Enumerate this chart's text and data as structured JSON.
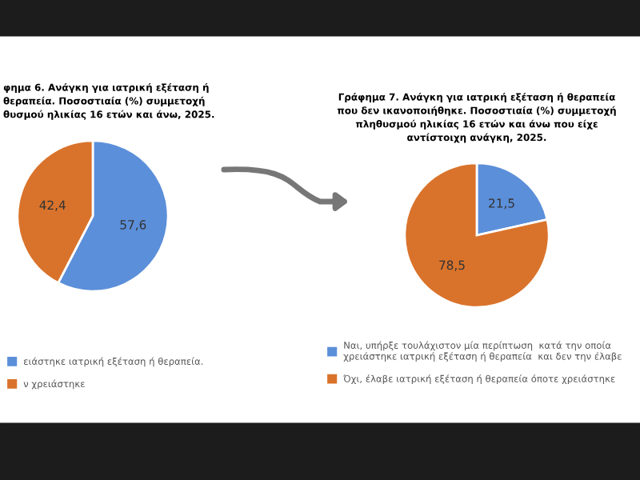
{
  "chart_data": [
    {
      "type": "pie",
      "title": "φημα 6. Ανάγκη για ιατρική εξέταση ή\nθεραπεία. Ποσοστιαία (%) συμμετοχή\nθυσμού ηλικίας 16 ετών και άνω, 2025.",
      "categories": [
        "ειάστηκε ιατρική εξέταση ή θεραπεία.",
        "ν χρειάστηκε"
      ],
      "values": [
        57.6,
        42.4
      ],
      "value_labels": [
        "57,6",
        "42,4"
      ],
      "colors": [
        "#5b8fd9",
        "#d9732b"
      ],
      "legend": "bottom"
    },
    {
      "type": "pie",
      "title": "Γράφημα 7. Ανάγκη για ιατρική εξέταση ή θεραπεία\nπου δεν ικανοποιήθηκε. Ποσοστιαία (%) συμμετοχή\nπληθυσμού ηλικίας 16 ετών και άνω που είχε\nαντίστοιχη ανάγκη, 2025.",
      "categories": [
        "Ναι, υπήρξε τουλάχιστον μία περίπτωση  κατά την οποία\nχρειάστηκε ιατρική εξέταση ή θεραπεία  και δεν την έλαβε",
        "Όχι, έλαβε ιατρική εξέταση ή θεραπεία όποτε χρειάστηκε"
      ],
      "values": [
        21.5,
        78.5
      ],
      "value_labels": [
        "21,5",
        "78,5"
      ],
      "colors": [
        "#5b8fd9",
        "#d9732b"
      ],
      "legend": "bottom"
    }
  ]
}
